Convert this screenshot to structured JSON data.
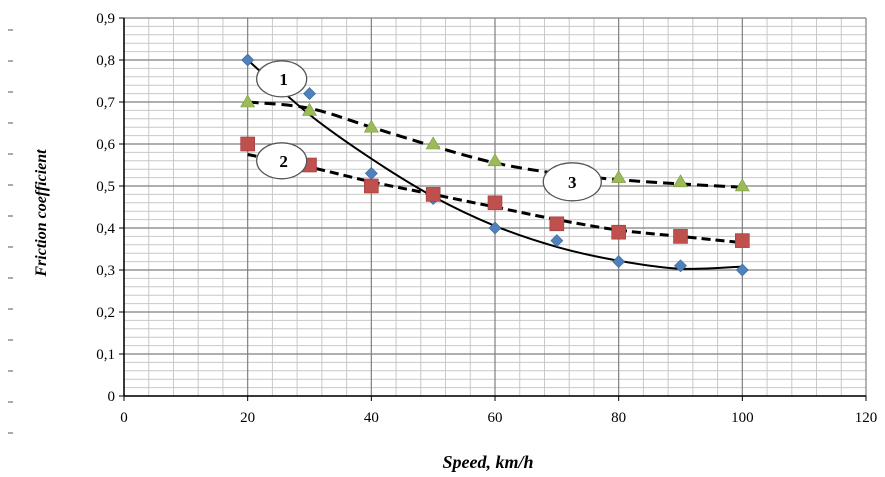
{
  "chart_data": {
    "type": "scatter",
    "xlabel": "Speed, km/h",
    "ylabel": "Friction coefficient",
    "xlim": [
      0,
      120
    ],
    "ylim": [
      0,
      0.9
    ],
    "x_ticks": [
      "0",
      "20",
      "40",
      "60",
      "80",
      "100",
      "120"
    ],
    "y_ticks": [
      "0",
      "0,1",
      "0,2",
      "0,3",
      "0,4",
      "0,5",
      "0,6",
      "0,7",
      "0,8",
      "0,9"
    ],
    "grid": true,
    "x_minor_step": 4,
    "y_minor_step": 0.02,
    "series": [
      {
        "name": "1",
        "marker": "diamond",
        "color": "#4F81BD",
        "line_style": "solid",
        "x": [
          20,
          30,
          40,
          50,
          60,
          70,
          80,
          90,
          100
        ],
        "y": [
          0.8,
          0.72,
          0.53,
          0.47,
          0.4,
          0.37,
          0.32,
          0.31,
          0.3
        ],
        "trend": [
          {
            "x": 20,
            "y": 0.8
          },
          {
            "x": 30,
            "y": 0.67
          },
          {
            "x": 40,
            "y": 0.565
          },
          {
            "x": 50,
            "y": 0.475
          },
          {
            "x": 60,
            "y": 0.405
          },
          {
            "x": 70,
            "y": 0.355
          },
          {
            "x": 80,
            "y": 0.322
          },
          {
            "x": 90,
            "y": 0.303
          },
          {
            "x": 100,
            "y": 0.308
          }
        ]
      },
      {
        "name": "2",
        "marker": "square",
        "color": "#C0504D",
        "line_style": "dashed",
        "x": [
          20,
          30,
          40,
          50,
          60,
          70,
          80,
          90,
          100
        ],
        "y": [
          0.6,
          0.55,
          0.5,
          0.48,
          0.46,
          0.41,
          0.39,
          0.38,
          0.37
        ],
        "trend": [
          {
            "x": 20,
            "y": 0.575
          },
          {
            "x": 30,
            "y": 0.545
          },
          {
            "x": 40,
            "y": 0.51
          },
          {
            "x": 50,
            "y": 0.48
          },
          {
            "x": 60,
            "y": 0.45
          },
          {
            "x": 70,
            "y": 0.42
          },
          {
            "x": 80,
            "y": 0.395
          },
          {
            "x": 90,
            "y": 0.38
          },
          {
            "x": 100,
            "y": 0.365
          }
        ]
      },
      {
        "name": "3",
        "marker": "triangle",
        "color": "#9BBB59",
        "line_style": "dashed",
        "x": [
          20,
          30,
          40,
          50,
          60,
          80,
          90,
          100
        ],
        "y": [
          0.7,
          0.68,
          0.64,
          0.6,
          0.56,
          0.52,
          0.51,
          0.5
        ],
        "trend": [
          {
            "x": 20,
            "y": 0.7
          },
          {
            "x": 30,
            "y": 0.685
          },
          {
            "x": 40,
            "y": 0.64
          },
          {
            "x": 50,
            "y": 0.595
          },
          {
            "x": 60,
            "y": 0.555
          },
          {
            "x": 70,
            "y": 0.53
          },
          {
            "x": 80,
            "y": 0.515
          },
          {
            "x": 90,
            "y": 0.505
          },
          {
            "x": 100,
            "y": 0.497
          }
        ]
      }
    ],
    "callouts": [
      {
        "text": "1",
        "x": 25.5,
        "y": 0.755
      },
      {
        "text": "2",
        "x": 25.5,
        "y": 0.56
      },
      {
        "text": "3",
        "x": 72.5,
        "y": 0.51
      }
    ]
  }
}
